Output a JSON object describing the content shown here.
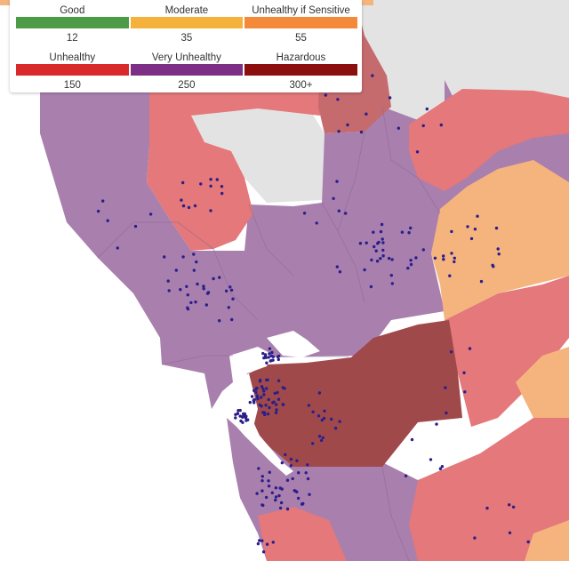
{
  "legend": {
    "categories": [
      {
        "label": "Good",
        "value": "12",
        "color": "#4e9b47"
      },
      {
        "label": "Moderate",
        "value": "35",
        "color": "#f4b23d"
      },
      {
        "label": "Unhealthy if Sensitive",
        "value": "55",
        "color": "#f5893a"
      },
      {
        "label": "Unhealthy",
        "value": "150",
        "color": "#d82a2a"
      },
      {
        "label": "Very Unhealthy",
        "value": "250",
        "color": "#7d2f86"
      },
      {
        "label": "Hazardous",
        "value": "300+",
        "color": "#8c0f0f"
      }
    ]
  },
  "map": {
    "region_fill_colors": {
      "very_unhealthy": "#a97fae",
      "unhealthy": "#e4787a",
      "unhealthy_dark": "#b35e63",
      "hazardous": "#a0494b",
      "sensitive": "#f5b47e",
      "no_data": "#e2e2e2",
      "water": "#ffffff"
    },
    "sensor_dot_color": "#2a1f8a"
  }
}
